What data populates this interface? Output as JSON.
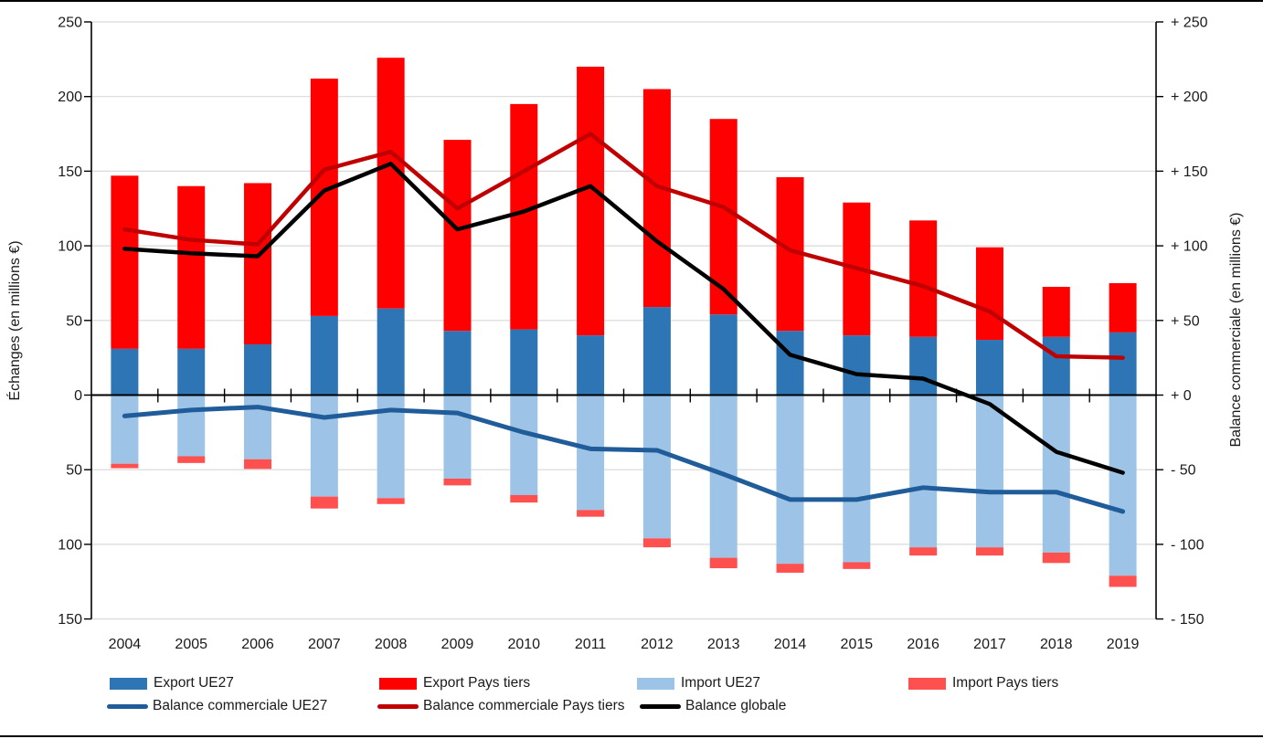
{
  "chart_data": {
    "type": "bar",
    "subtype": "stacked-column-with-lines-dual-axis",
    "categories": [
      "2004",
      "2005",
      "2006",
      "2007",
      "2008",
      "2009",
      "2010",
      "2011",
      "2012",
      "2013",
      "2014",
      "2015",
      "2016",
      "2017",
      "2018",
      "2019"
    ],
    "bar_series": [
      {
        "name": "Export UE27",
        "color": "#2E75B5",
        "stack": "export",
        "direction": "up",
        "values": [
          31,
          31,
          34,
          53,
          58,
          43,
          44,
          40,
          59,
          54,
          43,
          40,
          39,
          37,
          39,
          42
        ]
      },
      {
        "name": "Export Pays tiers",
        "color": "#FF0000",
        "stack": "export",
        "direction": "up",
        "values": [
          116,
          109,
          108,
          159,
          168,
          128,
          151,
          180,
          146,
          131,
          103,
          89,
          78,
          62,
          33.5,
          33
        ]
      },
      {
        "name": "Import UE27",
        "color": "#9DC3E6",
        "stack": "import",
        "direction": "down",
        "values": [
          46,
          41,
          43,
          68,
          69,
          56,
          67,
          77,
          96,
          109,
          113,
          112,
          102,
          102,
          105.5,
          121
        ]
      },
      {
        "name": "Import Pays tiers",
        "color": "#FF5050",
        "stack": "import",
        "direction": "down",
        "values": [
          3,
          4.5,
          6.5,
          8,
          4,
          4.5,
          5,
          4.5,
          6,
          7,
          6,
          4.5,
          5.5,
          5.5,
          7,
          7.5
        ]
      }
    ],
    "line_series": [
      {
        "name": "Balance commerciale UE27",
        "color": "#1F5C99",
        "width": 5,
        "values": [
          -14,
          -10,
          -8,
          -15,
          -10,
          -12,
          -25,
          -36,
          -37,
          -53,
          -70,
          -70,
          -62,
          -65,
          -65,
          -78
        ]
      },
      {
        "name": "Balance commerciale Pays tiers",
        "color": "#C00000",
        "width": 4.5,
        "values": [
          111,
          104,
          101,
          151,
          163,
          125,
          150,
          175,
          140,
          126,
          97,
          85,
          73,
          56,
          26,
          25
        ]
      },
      {
        "name": "Balance globale",
        "color": "#000000",
        "width": 4.5,
        "values": [
          98,
          95,
          93,
          137,
          155,
          111,
          123,
          140,
          103,
          71,
          27,
          14,
          11,
          -6,
          -38,
          -52
        ]
      }
    ],
    "left_axis": {
      "title": "Échanges (en millions €)",
      "tick_labels": [
        "250",
        "200",
        "150",
        "100",
        "50",
        "0",
        "50",
        "100",
        "150"
      ],
      "tick_values": [
        250,
        200,
        150,
        100,
        50,
        0,
        -50,
        -100,
        -150
      ]
    },
    "right_axis": {
      "title": "Balance commerciale (en millions €)",
      "tick_labels": [
        "+ 250",
        "+ 200",
        "+ 150",
        "+ 100",
        "+ 50",
        "+ 0",
        "- 50",
        "- 100",
        "- 150"
      ],
      "tick_values": [
        250,
        200,
        150,
        100,
        50,
        0,
        -50,
        -100,
        -150
      ]
    },
    "ylim": [
      -150,
      250
    ],
    "grid": true,
    "gridline_color": "#D9D9D9",
    "legend_position": "bottom"
  },
  "legend": {
    "row1": [
      {
        "label": "Export UE27"
      },
      {
        "label": "Export Pays tiers"
      },
      {
        "label": "Import UE27"
      },
      {
        "label": "Import Pays tiers"
      }
    ],
    "row2": [
      {
        "label": "Balance commerciale UE27"
      },
      {
        "label": "Balance commerciale Pays tiers"
      },
      {
        "label": "Balance globale"
      }
    ]
  }
}
